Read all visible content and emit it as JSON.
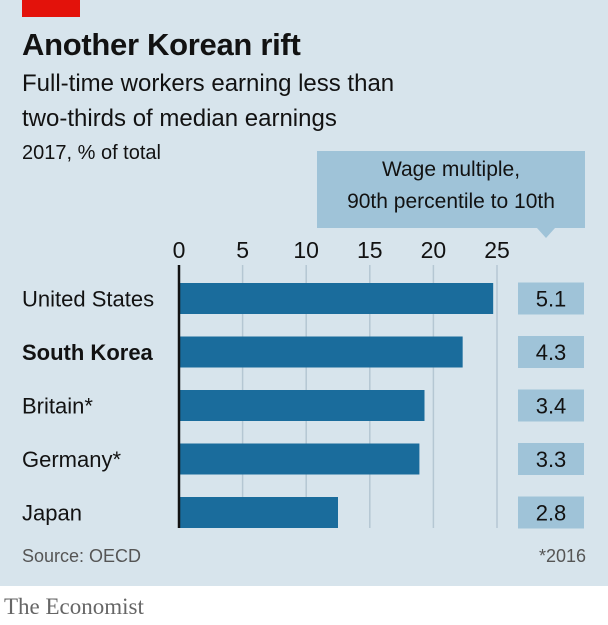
{
  "header": {
    "title": "Another Korean rift",
    "subtitle_line1": "Full-time workers earning less than",
    "subtitle_line2": "two-thirds of median earnings",
    "units": "2017, % of total"
  },
  "callout": {
    "line1": "Wage multiple,",
    "line2": "90th percentile to 10th"
  },
  "chart_data": {
    "type": "bar",
    "orientation": "horizontal",
    "categories": [
      "United States",
      "South Korea",
      "Britain*",
      "Germany*",
      "Japan"
    ],
    "highlighted_category": "South Korea",
    "values": [
      24.7,
      22.3,
      19.3,
      18.9,
      12.5
    ],
    "xlim": [
      0,
      25
    ],
    "xticks": [
      0,
      5,
      10,
      15,
      20,
      25
    ],
    "grid": true,
    "bar_color": "#1a6c9c",
    "wage_multiple": [
      "5.1",
      "4.3",
      "3.4",
      "3.3",
      "2.8"
    ],
    "wage_multiple_box_color": "#9fc3d8"
  },
  "footer": {
    "source": "Source: OECD",
    "footnote": "*2016",
    "brand": "The Economist"
  },
  "colors": {
    "background": "#d7e4ec",
    "accent_red": "#e3120b",
    "text": "#121212"
  }
}
